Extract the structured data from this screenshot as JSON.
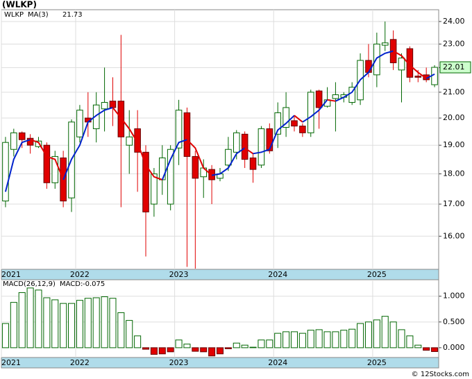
{
  "chart_data": [
    {
      "type": "candlestick",
      "title": "(WLKP)",
      "log": true,
      "categories": [
        "2021",
        null,
        null,
        null,
        null,
        null,
        null,
        null,
        null,
        "2022",
        null,
        null,
        null,
        null,
        null,
        null,
        null,
        null,
        null,
        null,
        null,
        "2023",
        null,
        null,
        null,
        null,
        null,
        null,
        null,
        null,
        null,
        null,
        null,
        "2024",
        null,
        null,
        null,
        null,
        null,
        null,
        null,
        null,
        null,
        null,
        null,
        "2025",
        null,
        null,
        null,
        null,
        null,
        null,
        null
      ],
      "candles": {
        "name": "WLKP",
        "up_color": "#006600",
        "down_color": "#e00000",
        "open": [
          17.1,
          18.85,
          19.45,
          19.25,
          18.95,
          19.0,
          17.7,
          18.55,
          17.2,
          19.3,
          20.0,
          19.6,
          20.35,
          20.65,
          20.65,
          19.0,
          19.6,
          18.75,
          17.0,
          17.8,
          17.0,
          18.9,
          20.2,
          18.6,
          17.9,
          18.15,
          17.85,
          18.3,
          18.75,
          19.4,
          18.55,
          18.3,
          19.6,
          19.4,
          19.65,
          19.9,
          19.7,
          19.45,
          21.05,
          20.45,
          20.75,
          20.8,
          20.6,
          20.7,
          22.3,
          21.7,
          22.95,
          23.2,
          21.9,
          22.8,
          21.65,
          21.7,
          21.3
        ],
        "high": [
          19.3,
          19.6,
          19.5,
          19.4,
          19.3,
          19.1,
          18.8,
          18.8,
          19.95,
          20.5,
          21.0,
          21.0,
          22.0,
          21.6,
          23.4,
          20.3,
          20.3,
          19.0,
          18.2,
          19.0,
          19.0,
          20.7,
          20.4,
          18.8,
          18.5,
          18.3,
          18.2,
          19.3,
          19.55,
          19.5,
          18.7,
          19.7,
          19.8,
          20.6,
          21.0,
          20.1,
          19.8,
          21.1,
          21.1,
          21.2,
          21.4,
          21.0,
          21.4,
          22.6,
          23.0,
          23.5,
          24.0,
          23.6,
          22.6,
          22.9,
          21.9,
          22.0,
          22.1
        ],
        "low": [
          16.9,
          18.6,
          18.9,
          18.7,
          18.9,
          17.5,
          17.5,
          16.9,
          16.75,
          19.1,
          19.3,
          19.1,
          19.5,
          19.7,
          16.9,
          18.0,
          17.4,
          15.4,
          16.6,
          17.3,
          16.8,
          18.3,
          15.1,
          15.05,
          17.2,
          17.0,
          17.75,
          18.1,
          18.5,
          18.2,
          17.7,
          18.2,
          18.7,
          18.9,
          19.3,
          19.5,
          19.3,
          19.3,
          19.6,
          20.4,
          19.5,
          20.6,
          20.5,
          20.5,
          21.6,
          21.2,
          22.7,
          21.9,
          20.6,
          21.4,
          21.4,
          21.4,
          21.2
        ],
        "close": [
          19.1,
          19.45,
          19.2,
          19.0,
          19.15,
          17.7,
          18.6,
          17.1,
          19.85,
          20.3,
          19.85,
          20.5,
          20.6,
          20.4,
          19.3,
          19.3,
          18.75,
          16.75,
          18.0,
          18.55,
          18.85,
          20.3,
          18.6,
          17.85,
          18.2,
          17.8,
          18.0,
          18.85,
          19.45,
          18.5,
          18.15,
          19.6,
          18.8,
          20.2,
          20.4,
          19.7,
          19.45,
          21.0,
          20.4,
          20.7,
          20.9,
          20.9,
          21.2,
          22.3,
          21.8,
          23.0,
          23.05,
          22.2,
          22.4,
          21.6,
          21.6,
          21.5,
          22.01
        ]
      },
      "ma": {
        "name": "MA(3)",
        "up_color": "#0022cc",
        "down_color": "#e00000",
        "values": [
          17.4,
          18.5,
          19.1,
          19.2,
          19.1,
          18.6,
          18.5,
          17.8,
          18.5,
          19.0,
          19.85,
          20.1,
          20.3,
          20.4,
          20.0,
          19.6,
          19.1,
          18.3,
          17.9,
          17.8,
          18.5,
          19.1,
          19.2,
          18.9,
          18.2,
          17.95,
          18.0,
          18.2,
          18.7,
          18.9,
          18.7,
          18.75,
          18.85,
          19.55,
          19.8,
          20.1,
          19.85,
          20.05,
          20.3,
          20.7,
          20.65,
          20.8,
          21.0,
          21.5,
          21.8,
          22.4,
          22.6,
          22.7,
          22.5,
          22.1,
          21.8,
          21.55,
          21.73
        ]
      },
      "ylim": [
        15.03,
        24.54
      ],
      "yticks": [
        {
          "value": 16,
          "label": "16.00"
        },
        {
          "value": 17,
          "label": "17.00"
        },
        {
          "value": 18,
          "label": "18.00"
        },
        {
          "value": 19,
          "label": "19.00"
        },
        {
          "value": 20,
          "label": "20.00"
        },
        {
          "value": 21,
          "label": "21.00"
        },
        {
          "value": 22,
          "label": "22.00"
        },
        {
          "value": 23,
          "label": "23.00"
        },
        {
          "value": 24,
          "label": "24.00"
        }
      ],
      "grid": true
    },
    {
      "type": "bar",
      "title": "MACD(26,12,9)",
      "categories": [
        "2021",
        null,
        null,
        null,
        null,
        null,
        null,
        null,
        null,
        "2022",
        null,
        null,
        null,
        null,
        null,
        null,
        null,
        null,
        null,
        null,
        null,
        "2023",
        null,
        null,
        null,
        null,
        null,
        null,
        null,
        null,
        null,
        null,
        null,
        "2024",
        null,
        null,
        null,
        null,
        null,
        null,
        null,
        null,
        null,
        null,
        null,
        "2025",
        null,
        null,
        null,
        null,
        null,
        null,
        null
      ],
      "series": [
        {
          "name": "MACD:",
          "up_color": "#006600",
          "down_color": "#e00000",
          "label_color": "#0022cc",
          "values": [
            0.47,
            0.88,
            1.07,
            1.16,
            1.12,
            0.97,
            0.93,
            0.86,
            0.86,
            0.92,
            0.96,
            0.97,
            0.99,
            0.96,
            0.68,
            0.53,
            0.23,
            -0.03,
            -0.13,
            -0.12,
            -0.08,
            0.15,
            0.07,
            -0.07,
            -0.08,
            -0.16,
            -0.12,
            -0.02,
            0.09,
            0.05,
            0.01,
            0.15,
            0.15,
            0.28,
            0.31,
            0.31,
            0.28,
            0.34,
            0.35,
            0.31,
            0.31,
            0.34,
            0.36,
            0.47,
            0.5,
            0.54,
            0.61,
            0.5,
            0.35,
            0.23,
            0.05,
            -0.05,
            -0.075
          ]
        }
      ],
      "ylim": [
        -0.19,
        1.32
      ],
      "yticks": [
        {
          "value": 0,
          "label": "0.000"
        },
        {
          "value": 0.5,
          "label": "0.500"
        },
        {
          "value": 1,
          "label": "1.000"
        }
      ],
      "grid": true
    }
  ],
  "footer": "© 12Stocks.com"
}
